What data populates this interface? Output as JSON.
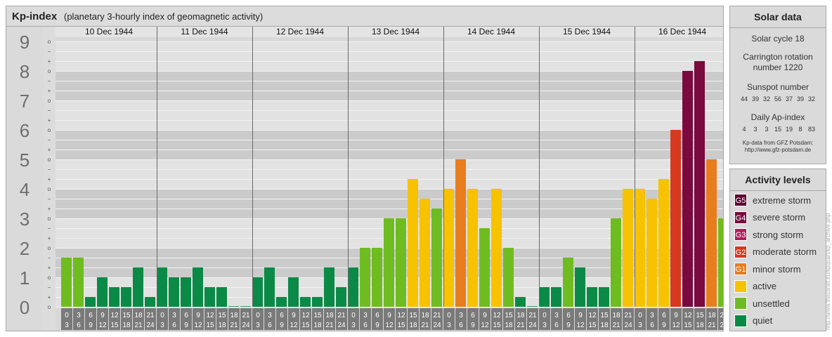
{
  "header": {
    "title": "Kp-index",
    "subtitle": "(planetary 3-hourly index of geomagnetic activity)"
  },
  "chart_data": {
    "type": "bar",
    "ylim": [
      0,
      9
    ],
    "y_ticks": [
      "0",
      "1",
      "2",
      "3",
      "4",
      "5",
      "6",
      "7",
      "8",
      "9"
    ],
    "minor_marks": [
      "o",
      "+",
      "−"
    ],
    "days": [
      "10 Dec 1944",
      "11 Dec 1944",
      "12 Dec 1944",
      "13 Dec 1944",
      "14 Dec 1944",
      "15 Dec 1944",
      "16 Dec 1944"
    ],
    "interval_starts": [
      "0",
      "3",
      "6",
      "9",
      "12",
      "15",
      "18",
      "21"
    ],
    "interval_ends": [
      "3",
      "6",
      "9",
      "12",
      "15",
      "18",
      "21",
      "24"
    ],
    "values": [
      1.667,
      1.667,
      0.333,
      1.0,
      0.667,
      0.667,
      1.333,
      0.333,
      1.333,
      1.0,
      1.0,
      1.333,
      0.667,
      0.667,
      0.0,
      0.0,
      1.0,
      1.333,
      0.333,
      1.0,
      0.333,
      0.333,
      1.333,
      0.667,
      1.333,
      2.0,
      2.0,
      3.0,
      3.0,
      4.333,
      3.667,
      3.333,
      4.0,
      5.0,
      4.0,
      2.667,
      4.0,
      2.0,
      0.333,
      0.0,
      0.667,
      0.667,
      1.667,
      1.333,
      0.667,
      0.667,
      3.0,
      4.0,
      4.0,
      3.667,
      4.333,
      6.0,
      8.0,
      8.333,
      5.0,
      3.0
    ],
    "level_colors": {
      "quiet": "#0a8a46",
      "unsettled": "#6fbc20",
      "active": "#f7c200",
      "minor": "#e87d1e",
      "moderate": "#d8381e",
      "strong": "#b01c5c",
      "severe": "#7a0a3e",
      "extreme": "#5a0030"
    }
  },
  "solar": {
    "title": "Solar data",
    "cycle": "Solar cycle 18",
    "carrington_1": "Carrington rotation",
    "carrington_2": "number 1220",
    "sunspot_label": "Sunspot number",
    "sunspots": [
      "44",
      "39",
      "32",
      "56",
      "37",
      "39",
      "32"
    ],
    "ap_label": "Daily Ap-index",
    "ap": [
      "4",
      "3",
      "3",
      "15",
      "19",
      "8",
      "83"
    ],
    "source_1": "Kp-data from GFZ Potsdam:",
    "source_2": "http://www.gfz-potsdam.de"
  },
  "levels": {
    "title": "Activity levels",
    "items": [
      {
        "code": "G5",
        "label": "extreme storm",
        "color": "#5a0030"
      },
      {
        "code": "G4",
        "label": "severe storm",
        "color": "#7a0a3e"
      },
      {
        "code": "G3",
        "label": "strong storm",
        "color": "#b01c5c"
      },
      {
        "code": "G2",
        "label": "moderate storm",
        "color": "#d8381e"
      },
      {
        "code": "G1",
        "label": "minor storm",
        "color": "#e87d1e"
      },
      {
        "code": "",
        "label": "active",
        "color": "#f7c200"
      },
      {
        "code": "",
        "label": "unsettled",
        "color": "#6fbc20"
      },
      {
        "code": "",
        "label": "quiet",
        "color": "#0a8a46"
      }
    ]
  },
  "credit": "http://www.theusnet.eu/kpquart/kp_archive.php"
}
